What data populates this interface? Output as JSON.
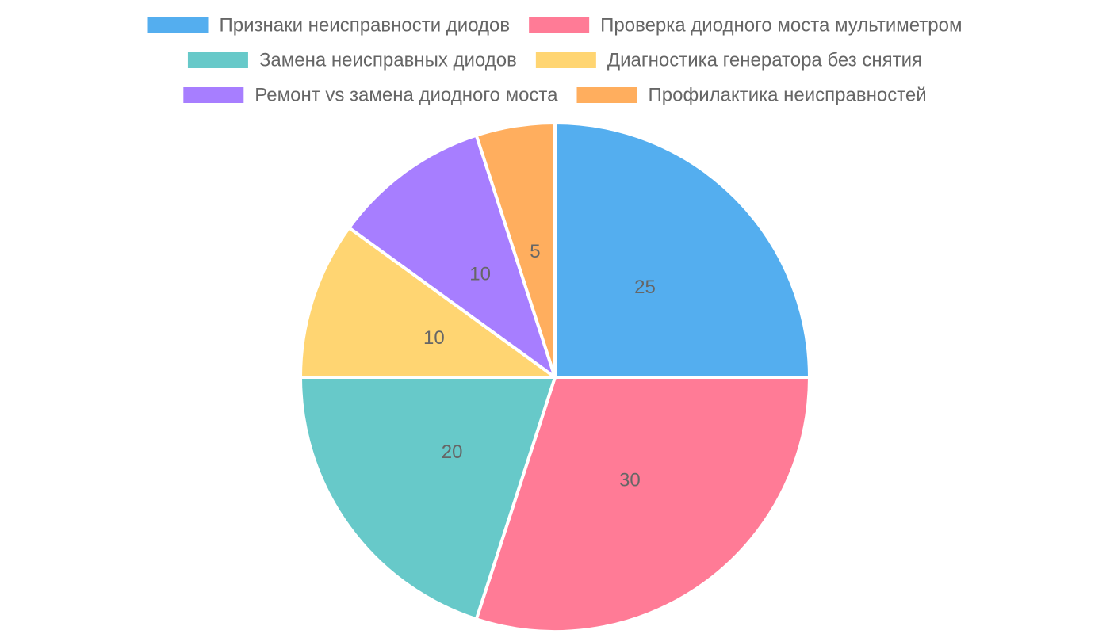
{
  "chart_data": {
    "type": "pie",
    "categories": [
      "Признаки неисправности диодов",
      "Проверка диодного моста мультиметром",
      "Замена неисправных диодов",
      "Диагностика генератора без снятия",
      "Ремонт vs замена диодного моста",
      "Профилактика неисправностей"
    ],
    "values": [
      25,
      30,
      20,
      10,
      10,
      5
    ],
    "data_labels": [
      "25",
      "30",
      "20",
      "10",
      "10",
      "5"
    ],
    "colors": [
      "#54aeef",
      "#ff7b96",
      "#67c9c9",
      "#ffd572",
      "#a77eff",
      "#ffae5e"
    ],
    "legend_position": "top",
    "start_angle": "12 o'clock, clockwise"
  }
}
